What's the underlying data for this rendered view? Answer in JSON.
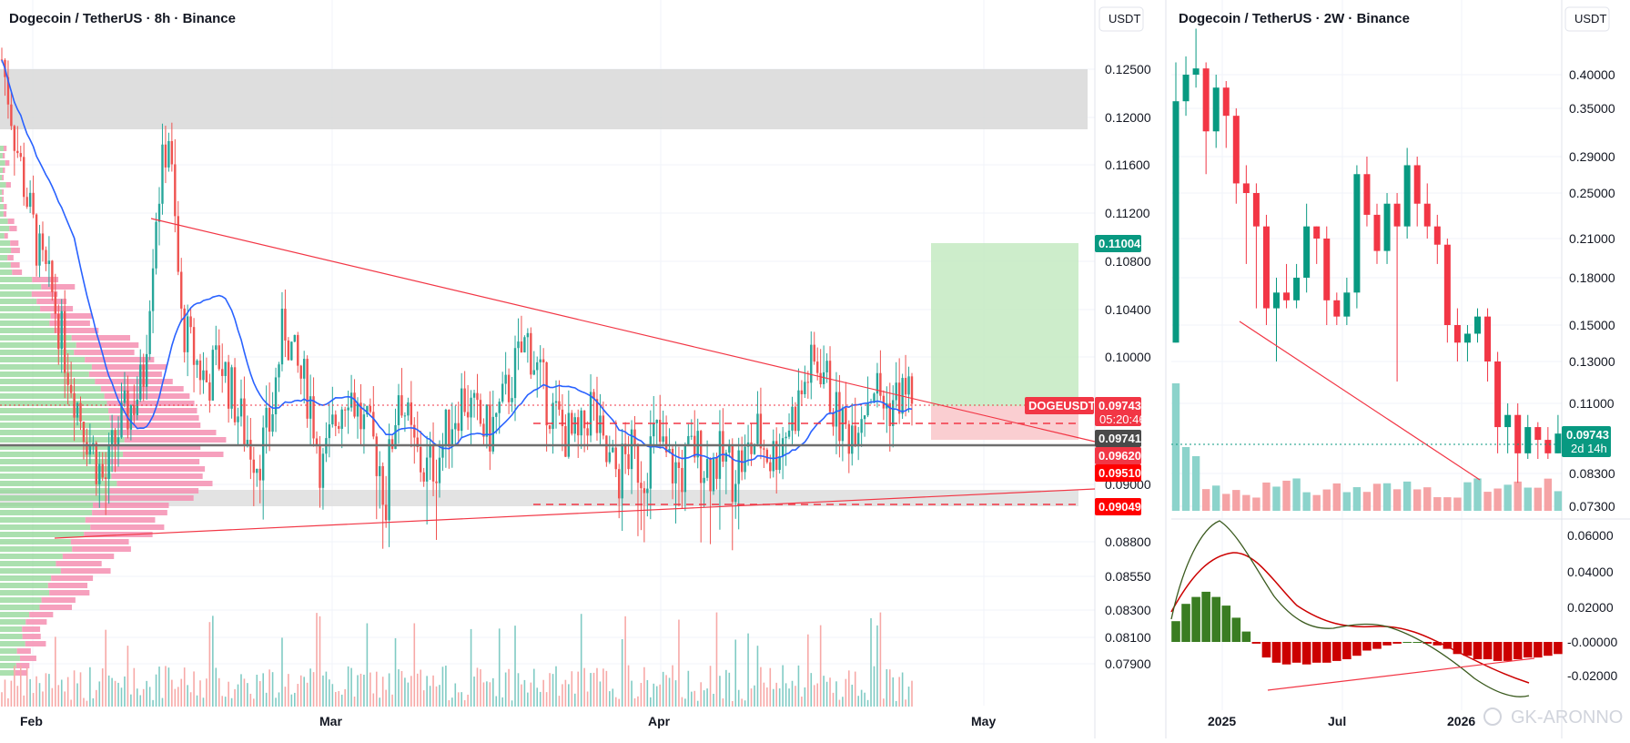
{
  "left_chart": {
    "title": "Dogecoin / TetherUS · 8h · Binance",
    "currency_button": "USDT",
    "x_ticks": [
      "Feb",
      "Mar",
      "Apr",
      "May"
    ],
    "y_ticks": [
      "0.12500",
      "0.12000",
      "0.11600",
      "0.11200",
      "0.10800",
      "0.10400",
      "0.10000",
      "0.09000",
      "0.08800",
      "0.08550",
      "0.08300",
      "0.08100",
      "0.07900"
    ],
    "price_labels": {
      "target": "0.11004",
      "symbol": "DOGEUSDT",
      "last": "0.09743",
      "countdown": "05:20:46",
      "level_a": "0.09741",
      "level_b": "0.09620",
      "level_c": "0.09510",
      "level_d": "0.09049"
    },
    "colors": {
      "up": "#26a69a",
      "down": "#ef5350",
      "ma": "#2962ff",
      "trend": "#f23645",
      "target_zone": "#c8ebc5",
      "stop_zone": "#f9c9cc"
    }
  },
  "right_chart": {
    "title": "Dogecoin / TetherUS · 2W · Binance",
    "currency_button": "USDT",
    "x_ticks": [
      "2025",
      "Jul",
      "2026"
    ],
    "y_ticks": [
      "0.40000",
      "0.35000",
      "0.29000",
      "0.25000",
      "0.21000",
      "0.18000",
      "0.15000",
      "0.13000",
      "0.11000",
      "0.08300",
      "0.07300"
    ],
    "price_label": "0.09743",
    "countdown": "2d 14h",
    "macd_ticks": [
      "0.06000",
      "0.04000",
      "0.02000",
      "-0.00000",
      "-0.02000"
    ],
    "colors": {
      "up": "#089981",
      "down": "#f23645",
      "macd_pos": "#3a7d22",
      "macd_neg": "#cc0000"
    }
  },
  "watermark": "GK-ARONNO",
  "chart_data": [
    {
      "type": "candlestick",
      "title": "Dogecoin / TetherUS · 8h · Binance",
      "xlabel": "",
      "ylabel": "",
      "y_axis_ticks": [
        0.125,
        0.12,
        0.116,
        0.112,
        0.108,
        0.104,
        0.1,
        0.09,
        0.088,
        0.0855,
        0.083,
        0.081,
        0.079
      ],
      "last_price": 0.09743,
      "levels": [
        0.11004,
        0.09741,
        0.0962,
        0.0951,
        0.09049
      ],
      "resistance_zone": [
        0.1205,
        0.1255
      ],
      "target_zone": [
        0.0975,
        0.11004
      ],
      "price_path": [
        0.126,
        0.1185,
        0.113,
        0.108,
        0.105,
        0.1,
        0.096,
        0.093,
        0.09,
        0.094,
        0.096,
        0.098,
        0.112,
        0.119,
        0.103,
        0.1,
        0.098,
        0.1,
        0.097,
        0.094,
        0.092,
        0.095,
        0.103,
        0.099,
        0.097,
        0.091,
        0.095,
        0.098,
        0.095,
        0.093,
        0.09,
        0.098,
        0.093,
        0.091,
        0.092,
        0.095,
        0.097,
        0.095,
        0.094,
        0.096,
        0.099,
        0.1015,
        0.098,
        0.0955,
        0.094,
        0.093,
        0.0965,
        0.092,
        0.091,
        0.0925,
        0.091,
        0.094,
        0.0915,
        0.091,
        0.093,
        0.0915,
        0.092,
        0.0915,
        0.092,
        0.094,
        0.092,
        0.094,
        0.096,
        0.099,
        0.0995,
        0.0955,
        0.094,
        0.096,
        0.098,
        0.096,
        0.097,
        0.09743
      ]
    },
    {
      "type": "candlestick",
      "title": "Dogecoin / TetherUS · 2W · Binance",
      "xlabel": "",
      "ylabel": "",
      "y_axis_ticks": [
        0.4,
        0.35,
        0.29,
        0.25,
        0.21,
        0.18,
        0.15,
        0.13,
        0.11,
        0.083,
        0.073
      ],
      "log_scale": true,
      "last_price": 0.09743,
      "candles": [
        {
          "o": 0.14,
          "c": 0.36,
          "h": 0.42,
          "l": 0.14
        },
        {
          "o": 0.36,
          "c": 0.4,
          "h": 0.43,
          "l": 0.34
        },
        {
          "o": 0.4,
          "c": 0.41,
          "h": 0.48,
          "l": 0.38
        },
        {
          "o": 0.41,
          "c": 0.32,
          "h": 0.42,
          "l": 0.27
        },
        {
          "o": 0.32,
          "c": 0.38,
          "h": 0.4,
          "l": 0.3
        },
        {
          "o": 0.38,
          "c": 0.34,
          "h": 0.39,
          "l": 0.3
        },
        {
          "o": 0.34,
          "c": 0.26,
          "h": 0.35,
          "l": 0.24
        },
        {
          "o": 0.26,
          "c": 0.25,
          "h": 0.28,
          "l": 0.19
        },
        {
          "o": 0.25,
          "c": 0.22,
          "h": 0.26,
          "l": 0.16
        },
        {
          "o": 0.22,
          "c": 0.16,
          "h": 0.23,
          "l": 0.15
        },
        {
          "o": 0.16,
          "c": 0.17,
          "h": 0.18,
          "l": 0.13
        },
        {
          "o": 0.17,
          "c": 0.165,
          "h": 0.19,
          "l": 0.16
        },
        {
          "o": 0.165,
          "c": 0.18,
          "h": 0.19,
          "l": 0.16
        },
        {
          "o": 0.18,
          "c": 0.22,
          "h": 0.24,
          "l": 0.17
        },
        {
          "o": 0.22,
          "c": 0.21,
          "h": 0.22,
          "l": 0.19
        },
        {
          "o": 0.21,
          "c": 0.165,
          "h": 0.22,
          "l": 0.15
        },
        {
          "o": 0.165,
          "c": 0.155,
          "h": 0.17,
          "l": 0.15
        },
        {
          "o": 0.155,
          "c": 0.17,
          "h": 0.18,
          "l": 0.15
        },
        {
          "o": 0.17,
          "c": 0.27,
          "h": 0.28,
          "l": 0.16
        },
        {
          "o": 0.27,
          "c": 0.23,
          "h": 0.29,
          "l": 0.22
        },
        {
          "o": 0.23,
          "c": 0.2,
          "h": 0.24,
          "l": 0.19
        },
        {
          "o": 0.2,
          "c": 0.24,
          "h": 0.25,
          "l": 0.19
        },
        {
          "o": 0.24,
          "c": 0.22,
          "h": 0.25,
          "l": 0.12
        },
        {
          "o": 0.22,
          "c": 0.28,
          "h": 0.3,
          "l": 0.21
        },
        {
          "o": 0.28,
          "c": 0.24,
          "h": 0.29,
          "l": 0.22
        },
        {
          "o": 0.24,
          "c": 0.22,
          "h": 0.26,
          "l": 0.21
        },
        {
          "o": 0.22,
          "c": 0.205,
          "h": 0.23,
          "l": 0.19
        },
        {
          "o": 0.205,
          "c": 0.15,
          "h": 0.21,
          "l": 0.14
        },
        {
          "o": 0.15,
          "c": 0.14,
          "h": 0.16,
          "l": 0.13
        },
        {
          "o": 0.14,
          "c": 0.145,
          "h": 0.15,
          "l": 0.13
        },
        {
          "o": 0.145,
          "c": 0.155,
          "h": 0.16,
          "l": 0.14
        },
        {
          "o": 0.155,
          "c": 0.13,
          "h": 0.16,
          "l": 0.12
        },
        {
          "o": 0.13,
          "c": 0.1,
          "h": 0.135,
          "l": 0.09
        },
        {
          "o": 0.1,
          "c": 0.105,
          "h": 0.11,
          "l": 0.09
        },
        {
          "o": 0.105,
          "c": 0.09,
          "h": 0.11,
          "l": 0.08
        },
        {
          "o": 0.09,
          "c": 0.1,
          "h": 0.105,
          "l": 0.088
        },
        {
          "o": 0.1,
          "c": 0.095,
          "h": 0.102,
          "l": 0.088
        },
        {
          "o": 0.095,
          "c": 0.09,
          "h": 0.1,
          "l": 0.088
        },
        {
          "o": 0.09,
          "c": 0.09743,
          "h": 0.105,
          "l": 0.09
        }
      ],
      "macd_histogram": [
        0.012,
        0.022,
        0.026,
        0.029,
        0.026,
        0.021,
        0.014,
        0.006,
        -0.001,
        -0.009,
        -0.012,
        -0.013,
        -0.012,
        -0.013,
        -0.012,
        -0.012,
        -0.011,
        -0.01,
        -0.008,
        -0.005,
        -0.004,
        -0.002,
        -0.001,
        0,
        0,
        -0.001,
        -0.002,
        -0.004,
        -0.007,
        -0.008,
        -0.01,
        -0.01,
        -0.011,
        -0.011,
        -0.01,
        -0.009,
        -0.009,
        -0.008,
        -0.007
      ],
      "macd_y_ticks": [
        0.06,
        0.04,
        0.02,
        0.0,
        -0.02
      ]
    }
  ]
}
